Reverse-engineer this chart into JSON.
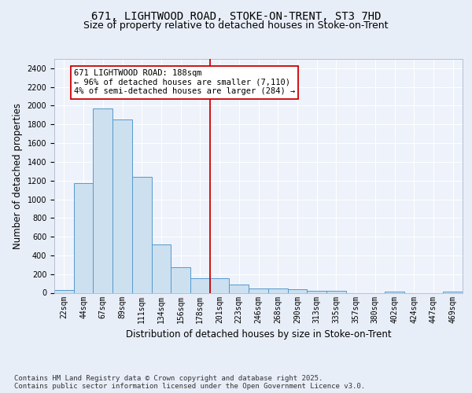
{
  "title1": "671, LIGHTWOOD ROAD, STOKE-ON-TRENT, ST3 7HD",
  "title2": "Size of property relative to detached houses in Stoke-on-Trent",
  "xlabel": "Distribution of detached houses by size in Stoke-on-Trent",
  "ylabel": "Number of detached properties",
  "categories": [
    "22sqm",
    "44sqm",
    "67sqm",
    "89sqm",
    "111sqm",
    "134sqm",
    "156sqm",
    "178sqm",
    "201sqm",
    "223sqm",
    "246sqm",
    "268sqm",
    "290sqm",
    "313sqm",
    "335sqm",
    "357sqm",
    "380sqm",
    "402sqm",
    "424sqm",
    "447sqm",
    "469sqm"
  ],
  "values": [
    30,
    1170,
    1970,
    1850,
    1240,
    520,
    275,
    155,
    155,
    90,
    50,
    45,
    40,
    25,
    20,
    0,
    0,
    15,
    0,
    0,
    15
  ],
  "bar_color": "#cce0f0",
  "bar_edge_color": "#5599cc",
  "vline_x_idx": 7.5,
  "vline_color": "#cc0000",
  "annotation_text": "671 LIGHTWOOD ROAD: 188sqm\n← 96% of detached houses are smaller (7,110)\n4% of semi-detached houses are larger (284) →",
  "annotation_box_color": "#ffffff",
  "annotation_box_edge": "#cc0000",
  "ylim": [
    0,
    2500
  ],
  "yticks": [
    0,
    200,
    400,
    600,
    800,
    1000,
    1200,
    1400,
    1600,
    1800,
    2000,
    2200,
    2400
  ],
  "footer1": "Contains HM Land Registry data © Crown copyright and database right 2025.",
  "footer2": "Contains public sector information licensed under the Open Government Licence v3.0.",
  "bg_color": "#e8eef8",
  "plot_bg_color": "#eef2fa",
  "grid_color": "#ffffff",
  "title_fontsize": 10,
  "subtitle_fontsize": 9,
  "axis_label_fontsize": 8.5,
  "tick_fontsize": 7,
  "footer_fontsize": 6.5,
  "ann_fontsize": 7.5
}
